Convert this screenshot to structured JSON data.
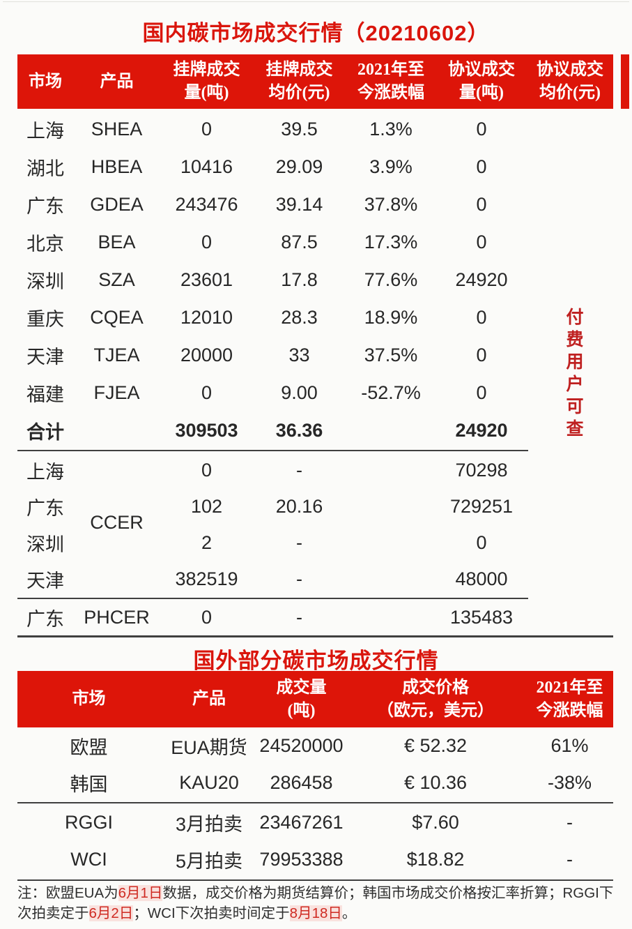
{
  "colors": {
    "red": "#da150c",
    "band_red": "#dd1509",
    "watermark_red": "#bf2020",
    "note_red": "#cf2a22",
    "text": "#272727",
    "line": "#3f3f3f",
    "background": "#fbfbf9"
  },
  "domestic": {
    "title": "国内碳市场成交行情（20210602）",
    "headers": [
      "市场",
      "产品",
      "挂牌成交\n量(吨)",
      "挂牌成交\n均价(元)",
      "2021年至\n今涨跌幅",
      "协议成交\n量(吨)",
      "协议成交\n均价(元)"
    ],
    "rows": [
      [
        "上海",
        "SHEA",
        "0",
        "39.5",
        "1.3%",
        "0",
        ""
      ],
      [
        "湖北",
        "HBEA",
        "10416",
        "29.09",
        "3.9%",
        "0",
        ""
      ],
      [
        "广东",
        "GDEA",
        "243476",
        "39.14",
        "37.8%",
        "0",
        ""
      ],
      [
        "北京",
        "BEA",
        "0",
        "87.5",
        "17.3%",
        "0",
        ""
      ],
      [
        "深圳",
        "SZA",
        "23601",
        "17.8",
        "77.6%",
        "24920",
        ""
      ],
      [
        "重庆",
        "CQEA",
        "12010",
        "28.3",
        "18.9%",
        "0",
        ""
      ],
      [
        "天津",
        "TJEA",
        "20000",
        "33",
        "37.5%",
        "0",
        ""
      ],
      [
        "福建",
        "FJEA",
        "0",
        "9.00",
        "-52.7%",
        "0",
        ""
      ]
    ],
    "total_row": [
      "合计",
      "",
      "309503",
      "36.36",
      "",
      "24920",
      ""
    ],
    "ccer_group": {
      "product_label": "CCER",
      "rows": [
        [
          "上海",
          "",
          "0",
          "-",
          "",
          "70298",
          ""
        ],
        [
          "广东",
          "",
          "102",
          "20.16",
          "",
          "729251",
          ""
        ],
        [
          "深圳",
          "",
          "2",
          "-",
          "",
          "0",
          ""
        ],
        [
          "天津",
          "",
          "382519",
          "-",
          "",
          "48000",
          ""
        ]
      ]
    },
    "phcer_row": [
      "广东",
      "PHCER",
      "0",
      "-",
      "",
      "135483",
      ""
    ],
    "paid_watermark": "付费用户可查"
  },
  "foreign": {
    "title": "国外部分碳市场成交行情",
    "headers": [
      "市场",
      "产品",
      "成交量\n(吨)",
      "成交价格\n（欧元，美元）",
      "2021年至\n今涨跌幅"
    ],
    "rows_upper": [
      [
        "欧盟",
        "EUA期货",
        "24520000",
        "€ 52.32",
        "61%"
      ],
      [
        "韩国",
        "KAU20",
        "286458",
        "€ 10.36",
        "-38%"
      ]
    ],
    "rows_lower": [
      [
        "RGGI",
        "3月拍卖",
        "23467261",
        "$7.60",
        "-"
      ],
      [
        "WCI",
        "5月拍卖",
        "79953388",
        "$18.82",
        "-"
      ]
    ]
  },
  "footnote": {
    "segments": [
      {
        "text": "注：欧盟EUA为",
        "red": false
      },
      {
        "text": "6月1日",
        "red": true
      },
      {
        "text": "数据，成交价格为期货结算价；韩国市场成交价格按汇率折算；RGGI下\n次拍卖定于",
        "red": false
      },
      {
        "text": "6月2日",
        "red": true
      },
      {
        "text": "；WCI下次拍卖时间定于",
        "red": false
      },
      {
        "text": "8月18日",
        "red": true
      },
      {
        "text": "。",
        "red": false
      }
    ]
  }
}
